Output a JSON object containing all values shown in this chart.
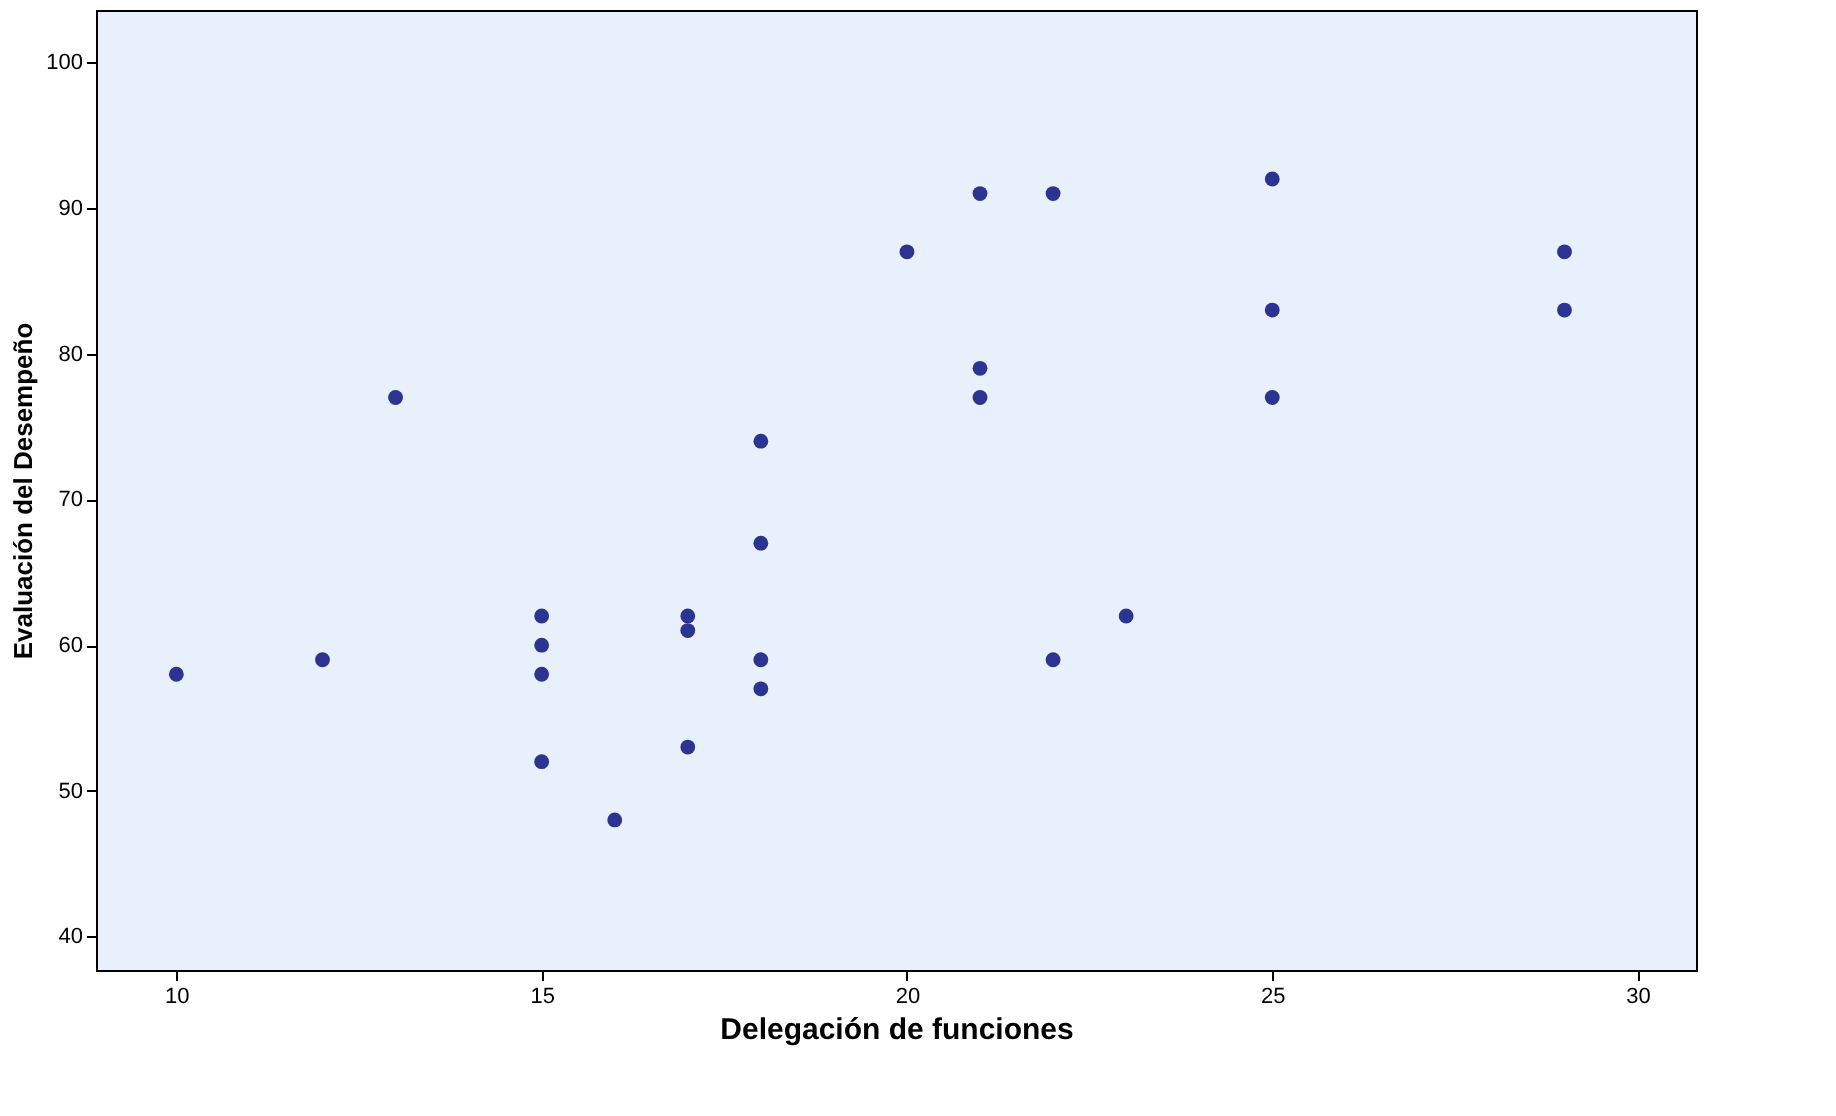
{
  "chart_data": {
    "type": "scatter",
    "xlabel": "Delegación de funciones",
    "ylabel": "Evaluación del Desempeño",
    "xlim": [
      8.9,
      30.8
    ],
    "ylim": [
      37.7,
      103.6
    ],
    "xticks": [
      10,
      15,
      20,
      25,
      30
    ],
    "yticks": [
      40,
      50,
      60,
      70,
      80,
      90,
      100
    ],
    "grid": false,
    "marker": "circle",
    "series": [
      {
        "color": "#2b3490",
        "x": [
          10,
          12,
          13,
          15,
          15,
          15,
          15,
          16,
          17,
          17,
          17,
          18,
          18,
          18,
          18,
          20,
          21,
          21,
          21,
          22,
          22,
          23,
          25,
          25,
          25,
          29,
          29
        ],
        "values": [
          58,
          59,
          77,
          62,
          60,
          58,
          52,
          48,
          62,
          61,
          53,
          74,
          67,
          59,
          57,
          87,
          91,
          79,
          77,
          91,
          59,
          62,
          92,
          83,
          77,
          87,
          83
        ]
      }
    ]
  }
}
